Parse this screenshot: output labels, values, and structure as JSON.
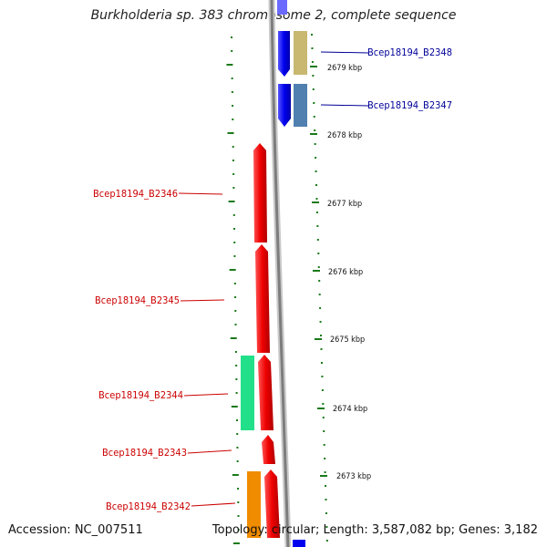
{
  "title": "Burkholderia sp. 383 chromosome 2, complete sequence",
  "footer": {
    "accession": "Accession: NC_007511",
    "summary": "Topology: circular; Length: 3,587,082 bp; Genes: 3,182"
  },
  "colors": {
    "backbone": "#8a8a8a",
    "forward_label": "#000099",
    "reverse_label": "#cc0000",
    "tick": "#1a7a1a"
  },
  "ticks": [
    "2679 kbp",
    "2678 kbp",
    "2677 kbp",
    "2676 kbp",
    "2675 kbp",
    "2674 kbp",
    "2673 kbp"
  ],
  "genes": [
    {
      "label": "Bcep18194_B2348",
      "strand": "forward",
      "color": "#0000ee",
      "track_color": "#c8b870"
    },
    {
      "label": "Bcep18194_B2347",
      "strand": "forward",
      "color": "#0000ee",
      "track_color": "#4f80b0"
    },
    {
      "label": "Bcep18194_B2346",
      "strand": "reverse",
      "color": "#ee0000"
    },
    {
      "label": "Bcep18194_B2345",
      "strand": "reverse",
      "color": "#ee0000"
    },
    {
      "label": "Bcep18194_B2344",
      "strand": "reverse",
      "color": "#ee0000",
      "track_color": "#22e08a"
    },
    {
      "label": "Bcep18194_B2343",
      "strand": "reverse",
      "color": "#ee0000"
    },
    {
      "label": "Bcep18194_B2342",
      "strand": "reverse",
      "color": "#ee0000",
      "track_color": "#f08c00"
    }
  ]
}
